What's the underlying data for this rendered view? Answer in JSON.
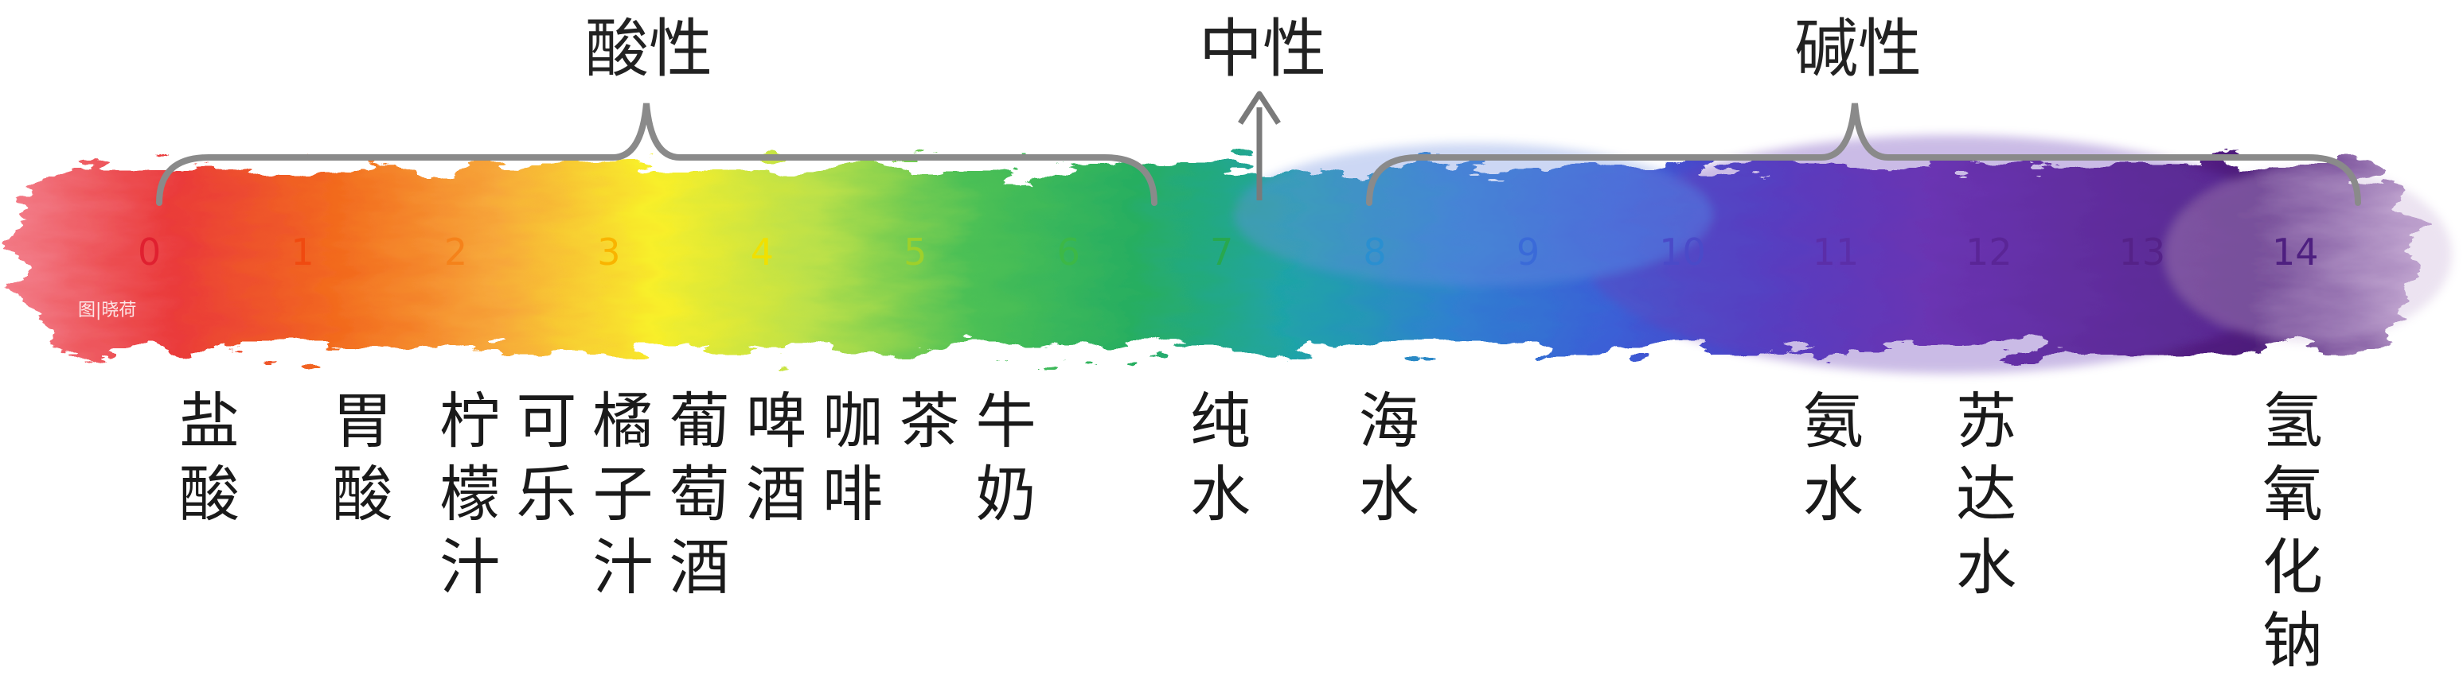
{
  "headings": {
    "acid": "酸性",
    "neutral": "中性",
    "base": "碱性"
  },
  "scale": {
    "min": 0,
    "max": 14,
    "ticks": [
      "0",
      "1",
      "2",
      "3",
      "4",
      "5",
      "6",
      "7",
      "8",
      "9",
      "10",
      "11",
      "12",
      "13",
      "14"
    ]
  },
  "tick_colors": [
    "#e02030",
    "#f04a10",
    "#f5821a",
    "#f9b400",
    "#f0e000",
    "#9fd02a",
    "#3cb846",
    "#28a84e",
    "#2a8fd0",
    "#3a6ad8",
    "#4a4ac8",
    "#5b2ea8",
    "#5a2596",
    "#552288",
    "#4e1f80"
  ],
  "gradient_stops": [
    "#f27a86",
    "#ea3a3a",
    "#f26a1e",
    "#f7a73a",
    "#f8ef2a",
    "#b9e04a",
    "#4cc055",
    "#27ae60",
    "#1fa3a8",
    "#2f80d0",
    "#3b5fd6",
    "#4e3cc5",
    "#6a2fb0",
    "#5c2490",
    "#4d1d7a",
    "#b99bc9"
  ],
  "examples": [
    {
      "ph": 0.4,
      "label": "盐\n酸"
    },
    {
      "ph": 1.4,
      "label": "胃\n酸"
    },
    {
      "ph": 2.1,
      "label": "柠\n檬\n汁"
    },
    {
      "ph": 2.6,
      "label": "可\n乐"
    },
    {
      "ph": 3.1,
      "label": "橘\n子\n汁"
    },
    {
      "ph": 3.6,
      "label": "葡\n萄\n酒"
    },
    {
      "ph": 4.1,
      "label": "啤\n酒"
    },
    {
      "ph": 4.6,
      "label": "咖\n啡"
    },
    {
      "ph": 5.1,
      "label": "茶"
    },
    {
      "ph": 5.6,
      "label": "牛\n奶"
    },
    {
      "ph": 7.0,
      "label": "纯\n水"
    },
    {
      "ph": 8.1,
      "label": "海\n水"
    },
    {
      "ph": 11.0,
      "label": "氨\n水"
    },
    {
      "ph": 12.0,
      "label": "苏\n达\n水"
    },
    {
      "ph": 14.0,
      "label": "氢\n氧\n化\n钠"
    }
  ],
  "watermark": "图|晓荷"
}
